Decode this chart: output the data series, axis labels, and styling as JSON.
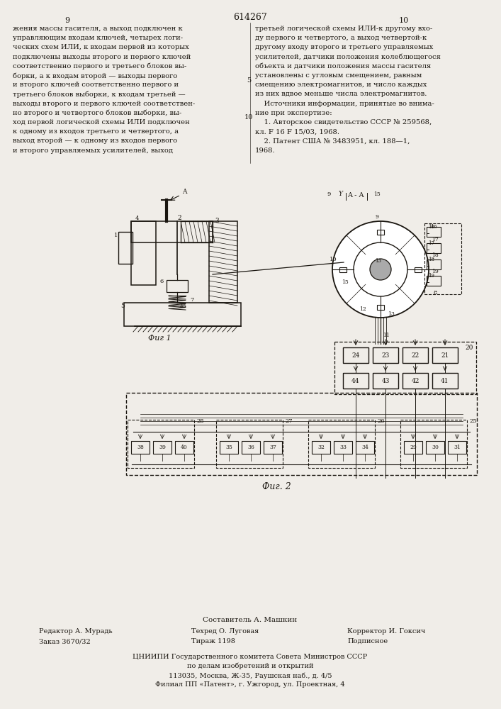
{
  "page_number_center": "614267",
  "page_left": "9",
  "page_right": "10",
  "background_color": "#f0ede8",
  "text_color": "#1a1610",
  "left_column_text": [
    "жения массы гасителя, а выход подключен к",
    "управляющим входам ключей, четырех логи-",
    "ческих схем ИЛИ, к входам первой из которых",
    "подключены выходы второго и первого ключей",
    "соответственно первого и третьего блоков вы-",
    "борки, а к входам второй — выходы первого",
    "и второго ключей соответственно первого и",
    "третьего блоков выборки, к входам третьей —",
    "выходы второго и первого ключей соответствен-",
    "но второго и четвертого блоков выборки, вы-",
    "ход первой логической схемы ИЛИ подключен",
    "к одному из входов третьего и четвертого, а",
    "выход второй — к одному из входов первого",
    "и второго управляемых усилителей, выход"
  ],
  "right_column_text": [
    "третьей логической схемы ИЛИ-к другому вхо-",
    "ду первого и четвертого, а выход четвертой-к",
    "другому входу второго и третьего управляемых",
    "усилителей, датчики положения колеблющегося",
    "объекта и датчики положения массы гасителя",
    "установлены с угловым смещением, равным",
    "смещению электромагнитов, и число каждых",
    "из них вдвое меньше числа электромагнитов.",
    "    Источники информации, принятые во внима-",
    "ние при экспертизе:",
    "    1. Авторское свидетельство СССР № 259568,",
    "кл. F 16 F 15/03, 1968.",
    "    2. Патент США № 3483951, кл. 188—1,",
    "1968."
  ],
  "fig1_label": "Фиг 1",
  "fig2_label": "Фиг. 2",
  "footer_composer": "Составитель А. Машкин",
  "footer_editor": "Редактор А. Мурадь",
  "footer_techred": "Техред О. Луговая",
  "footer_corrector": "Корректор И. Гоксич",
  "footer_order": "Заказ 3670/32",
  "footer_tirazh": "Тираж 1198",
  "footer_podpisnoe": "Подписное",
  "footer_org1": "ЦНИИПИ Государственного комитета Совета Министров СССР",
  "footer_org2": "по делам изобретений и открытий",
  "footer_addr1": "113035, Москва, Ж-35, Раушская наб., д. 4/5",
  "footer_addr2": "Филиал ПП «Патент», г. Ужгород, ул. Проектная, 4"
}
